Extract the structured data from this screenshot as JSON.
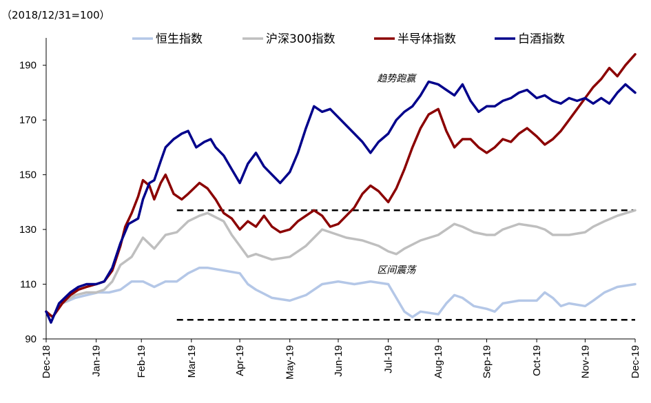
{
  "chart_data": {
    "type": "line",
    "subtitle": "（2018/12/31=100）",
    "ylim": [
      90,
      200
    ],
    "yticks": [
      90,
      110,
      130,
      150,
      170,
      190
    ],
    "x_start": "2018-12-31",
    "x_end": "2019-12-31",
    "xticks": [
      {
        "date": "2018-12-31",
        "label": "Dec-18"
      },
      {
        "date": "2019-01-31",
        "label": "Jan-19"
      },
      {
        "date": "2019-02-28",
        "label": "Feb-19"
      },
      {
        "date": "2019-03-31",
        "label": "Mar-19"
      },
      {
        "date": "2019-04-30",
        "label": "Apr-19"
      },
      {
        "date": "2019-05-31",
        "label": "May-19"
      },
      {
        "date": "2019-06-30",
        "label": "Jun-19"
      },
      {
        "date": "2019-07-31",
        "label": "Jul-19"
      },
      {
        "date": "2019-08-31",
        "label": "Aug-19"
      },
      {
        "date": "2019-09-30",
        "label": "Sep-19"
      },
      {
        "date": "2019-10-31",
        "label": "Oct-19"
      },
      {
        "date": "2019-11-30",
        "label": "Nov-19"
      },
      {
        "date": "2019-12-31",
        "label": "Dec-19"
      }
    ],
    "legend_position": "top",
    "series": [
      {
        "name": "恒生指数",
        "color": "#b4c7e7",
        "points": [
          [
            "2018-12-31",
            100
          ],
          [
            "2019-01-04",
            98
          ],
          [
            "2019-01-10",
            103
          ],
          [
            "2019-01-18",
            105
          ],
          [
            "2019-01-25",
            106
          ],
          [
            "2019-02-01",
            107
          ],
          [
            "2019-02-08",
            107
          ],
          [
            "2019-02-15",
            108
          ],
          [
            "2019-02-22",
            111
          ],
          [
            "2019-03-01",
            111
          ],
          [
            "2019-03-08",
            109
          ],
          [
            "2019-03-15",
            111
          ],
          [
            "2019-03-22",
            111
          ],
          [
            "2019-03-29",
            114
          ],
          [
            "2019-04-05",
            116
          ],
          [
            "2019-04-10",
            116
          ],
          [
            "2019-04-20",
            115
          ],
          [
            "2019-04-30",
            114
          ],
          [
            "2019-05-05",
            110
          ],
          [
            "2019-05-10",
            108
          ],
          [
            "2019-05-20",
            105
          ],
          [
            "2019-05-31",
            104
          ],
          [
            "2019-06-05",
            105
          ],
          [
            "2019-06-10",
            106
          ],
          [
            "2019-06-20",
            110
          ],
          [
            "2019-06-30",
            111
          ],
          [
            "2019-07-10",
            110
          ],
          [
            "2019-07-20",
            111
          ],
          [
            "2019-07-31",
            110
          ],
          [
            "2019-08-05",
            105
          ],
          [
            "2019-08-10",
            100
          ],
          [
            "2019-08-15",
            98
          ],
          [
            "2019-08-20",
            100
          ],
          [
            "2019-08-31",
            99
          ],
          [
            "2019-09-05",
            103
          ],
          [
            "2019-09-10",
            106
          ],
          [
            "2019-09-15",
            105
          ],
          [
            "2019-09-22",
            102
          ],
          [
            "2019-09-30",
            101
          ],
          [
            "2019-10-05",
            100
          ],
          [
            "2019-10-10",
            103
          ],
          [
            "2019-10-20",
            104
          ],
          [
            "2019-10-31",
            104
          ],
          [
            "2019-11-05",
            107
          ],
          [
            "2019-11-10",
            105
          ],
          [
            "2019-11-15",
            102
          ],
          [
            "2019-11-20",
            103
          ],
          [
            "2019-11-30",
            102
          ],
          [
            "2019-12-05",
            104
          ],
          [
            "2019-12-12",
            107
          ],
          [
            "2019-12-20",
            109
          ],
          [
            "2019-12-31",
            110
          ]
        ]
      },
      {
        "name": "沪深300指数",
        "color": "#bfbfbf",
        "points": [
          [
            "2018-12-31",
            100
          ],
          [
            "2019-01-04",
            98
          ],
          [
            "2019-01-10",
            103
          ],
          [
            "2019-01-18",
            106
          ],
          [
            "2019-01-25",
            107
          ],
          [
            "2019-01-31",
            107
          ],
          [
            "2019-02-05",
            108
          ],
          [
            "2019-02-10",
            111
          ],
          [
            "2019-02-15",
            117
          ],
          [
            "2019-02-22",
            120
          ],
          [
            "2019-02-26",
            124
          ],
          [
            "2019-03-01",
            127
          ],
          [
            "2019-03-08",
            123
          ],
          [
            "2019-03-15",
            128
          ],
          [
            "2019-03-22",
            129
          ],
          [
            "2019-03-29",
            133
          ],
          [
            "2019-04-05",
            135
          ],
          [
            "2019-04-10",
            136
          ],
          [
            "2019-04-20",
            133
          ],
          [
            "2019-04-25",
            128
          ],
          [
            "2019-04-30",
            124
          ],
          [
            "2019-05-05",
            120
          ],
          [
            "2019-05-10",
            121
          ],
          [
            "2019-05-20",
            119
          ],
          [
            "2019-05-31",
            120
          ],
          [
            "2019-06-05",
            122
          ],
          [
            "2019-06-10",
            124
          ],
          [
            "2019-06-20",
            130
          ],
          [
            "2019-06-30",
            128
          ],
          [
            "2019-07-05",
            127
          ],
          [
            "2019-07-15",
            126
          ],
          [
            "2019-07-25",
            124
          ],
          [
            "2019-07-31",
            122
          ],
          [
            "2019-08-05",
            121
          ],
          [
            "2019-08-10",
            123
          ],
          [
            "2019-08-20",
            126
          ],
          [
            "2019-08-31",
            128
          ],
          [
            "2019-09-05",
            130
          ],
          [
            "2019-09-10",
            132
          ],
          [
            "2019-09-15",
            131
          ],
          [
            "2019-09-22",
            129
          ],
          [
            "2019-09-30",
            128
          ],
          [
            "2019-10-05",
            128
          ],
          [
            "2019-10-10",
            130
          ],
          [
            "2019-10-20",
            132
          ],
          [
            "2019-10-31",
            131
          ],
          [
            "2019-11-05",
            130
          ],
          [
            "2019-11-10",
            128
          ],
          [
            "2019-11-20",
            128
          ],
          [
            "2019-11-30",
            129
          ],
          [
            "2019-12-05",
            131
          ],
          [
            "2019-12-12",
            133
          ],
          [
            "2019-12-20",
            135
          ],
          [
            "2019-12-31",
            137
          ]
        ]
      },
      {
        "name": "半导体指数",
        "color": "#8b0000",
        "points": [
          [
            "2018-12-31",
            100
          ],
          [
            "2019-01-04",
            98
          ],
          [
            "2019-01-10",
            103
          ],
          [
            "2019-01-15",
            106
          ],
          [
            "2019-01-20",
            108
          ],
          [
            "2019-01-25",
            109
          ],
          [
            "2019-01-31",
            110
          ],
          [
            "2019-02-05",
            111
          ],
          [
            "2019-02-10",
            115
          ],
          [
            "2019-02-15",
            124
          ],
          [
            "2019-02-18",
            131
          ],
          [
            "2019-02-22",
            136
          ],
          [
            "2019-02-26",
            142
          ],
          [
            "2019-03-01",
            148
          ],
          [
            "2019-03-05",
            146
          ],
          [
            "2019-03-08",
            141
          ],
          [
            "2019-03-12",
            147
          ],
          [
            "2019-03-15",
            150
          ],
          [
            "2019-03-20",
            143
          ],
          [
            "2019-03-25",
            141
          ],
          [
            "2019-03-29",
            143
          ],
          [
            "2019-04-05",
            147
          ],
          [
            "2019-04-10",
            145
          ],
          [
            "2019-04-15",
            141
          ],
          [
            "2019-04-20",
            136
          ],
          [
            "2019-04-25",
            134
          ],
          [
            "2019-04-30",
            130
          ],
          [
            "2019-05-05",
            133
          ],
          [
            "2019-05-10",
            131
          ],
          [
            "2019-05-15",
            135
          ],
          [
            "2019-05-20",
            131
          ],
          [
            "2019-05-25",
            129
          ],
          [
            "2019-05-31",
            130
          ],
          [
            "2019-06-05",
            133
          ],
          [
            "2019-06-10",
            135
          ],
          [
            "2019-06-15",
            137
          ],
          [
            "2019-06-20",
            135
          ],
          [
            "2019-06-25",
            131
          ],
          [
            "2019-06-30",
            132
          ],
          [
            "2019-07-05",
            135
          ],
          [
            "2019-07-10",
            138
          ],
          [
            "2019-07-15",
            143
          ],
          [
            "2019-07-20",
            146
          ],
          [
            "2019-07-25",
            144
          ],
          [
            "2019-07-31",
            140
          ],
          [
            "2019-08-05",
            145
          ],
          [
            "2019-08-10",
            152
          ],
          [
            "2019-08-15",
            160
          ],
          [
            "2019-08-20",
            167
          ],
          [
            "2019-08-25",
            172
          ],
          [
            "2019-08-31",
            174
          ],
          [
            "2019-09-05",
            166
          ],
          [
            "2019-09-10",
            160
          ],
          [
            "2019-09-15",
            163
          ],
          [
            "2019-09-20",
            163
          ],
          [
            "2019-09-25",
            160
          ],
          [
            "2019-09-30",
            158
          ],
          [
            "2019-10-05",
            160
          ],
          [
            "2019-10-10",
            163
          ],
          [
            "2019-10-15",
            162
          ],
          [
            "2019-10-20",
            165
          ],
          [
            "2019-10-25",
            167
          ],
          [
            "2019-10-31",
            164
          ],
          [
            "2019-11-05",
            161
          ],
          [
            "2019-11-10",
            163
          ],
          [
            "2019-11-15",
            166
          ],
          [
            "2019-11-20",
            170
          ],
          [
            "2019-11-25",
            174
          ],
          [
            "2019-11-30",
            178
          ],
          [
            "2019-12-05",
            182
          ],
          [
            "2019-12-10",
            185
          ],
          [
            "2019-12-15",
            189
          ],
          [
            "2019-12-20",
            186
          ],
          [
            "2019-12-25",
            190
          ],
          [
            "2019-12-31",
            194
          ]
        ]
      },
      {
        "name": "白酒指数",
        "color": "#00008b",
        "points": [
          [
            "2018-12-31",
            100
          ],
          [
            "2019-01-03",
            96
          ],
          [
            "2019-01-08",
            103
          ],
          [
            "2019-01-15",
            107
          ],
          [
            "2019-01-20",
            109
          ],
          [
            "2019-01-25",
            110
          ],
          [
            "2019-01-31",
            110
          ],
          [
            "2019-02-05",
            111
          ],
          [
            "2019-02-10",
            116
          ],
          [
            "2019-02-15",
            125
          ],
          [
            "2019-02-20",
            132
          ],
          [
            "2019-02-26",
            134
          ],
          [
            "2019-03-01",
            141
          ],
          [
            "2019-03-05",
            147
          ],
          [
            "2019-03-08",
            148
          ],
          [
            "2019-03-12",
            155
          ],
          [
            "2019-03-15",
            160
          ],
          [
            "2019-03-20",
            163
          ],
          [
            "2019-03-25",
            165
          ],
          [
            "2019-03-29",
            166
          ],
          [
            "2019-04-03",
            160
          ],
          [
            "2019-04-08",
            162
          ],
          [
            "2019-04-12",
            163
          ],
          [
            "2019-04-15",
            160
          ],
          [
            "2019-04-20",
            157
          ],
          [
            "2019-04-25",
            152
          ],
          [
            "2019-04-30",
            147
          ],
          [
            "2019-05-05",
            154
          ],
          [
            "2019-05-10",
            158
          ],
          [
            "2019-05-15",
            153
          ],
          [
            "2019-05-20",
            150
          ],
          [
            "2019-05-25",
            147
          ],
          [
            "2019-05-31",
            151
          ],
          [
            "2019-06-05",
            158
          ],
          [
            "2019-06-10",
            167
          ],
          [
            "2019-06-15",
            175
          ],
          [
            "2019-06-20",
            173
          ],
          [
            "2019-06-25",
            174
          ],
          [
            "2019-06-30",
            171
          ],
          [
            "2019-07-05",
            168
          ],
          [
            "2019-07-10",
            165
          ],
          [
            "2019-07-15",
            162
          ],
          [
            "2019-07-20",
            158
          ],
          [
            "2019-07-25",
            162
          ],
          [
            "2019-07-31",
            165
          ],
          [
            "2019-08-05",
            170
          ],
          [
            "2019-08-10",
            173
          ],
          [
            "2019-08-15",
            175
          ],
          [
            "2019-08-20",
            179
          ],
          [
            "2019-08-25",
            184
          ],
          [
            "2019-08-31",
            183
          ],
          [
            "2019-09-05",
            181
          ],
          [
            "2019-09-10",
            179
          ],
          [
            "2019-09-15",
            183
          ],
          [
            "2019-09-20",
            177
          ],
          [
            "2019-09-25",
            173
          ],
          [
            "2019-09-30",
            175
          ],
          [
            "2019-10-05",
            175
          ],
          [
            "2019-10-10",
            177
          ],
          [
            "2019-10-15",
            178
          ],
          [
            "2019-10-20",
            180
          ],
          [
            "2019-10-25",
            181
          ],
          [
            "2019-10-31",
            178
          ],
          [
            "2019-11-05",
            179
          ],
          [
            "2019-11-10",
            177
          ],
          [
            "2019-11-15",
            176
          ],
          [
            "2019-11-20",
            178
          ],
          [
            "2019-11-25",
            177
          ],
          [
            "2019-11-30",
            178
          ],
          [
            "2019-12-05",
            176
          ],
          [
            "2019-12-10",
            178
          ],
          [
            "2019-12-15",
            176
          ],
          [
            "2019-12-20",
            180
          ],
          [
            "2019-12-25",
            183
          ],
          [
            "2019-12-31",
            180
          ]
        ]
      }
    ],
    "annotations": [
      {
        "text": "趋势跑赢",
        "date": "2019-08-05",
        "y": 184
      },
      {
        "text": "区间震荡",
        "date": "2019-08-05",
        "y": 114
      }
    ],
    "reference_lines": [
      {
        "y": 137,
        "from": "2019-03-22",
        "to": "2019-12-31",
        "style": "dashed",
        "color": "#000000"
      },
      {
        "y": 97,
        "from": "2019-03-22",
        "to": "2019-12-31",
        "style": "dashed",
        "color": "#000000"
      }
    ]
  }
}
